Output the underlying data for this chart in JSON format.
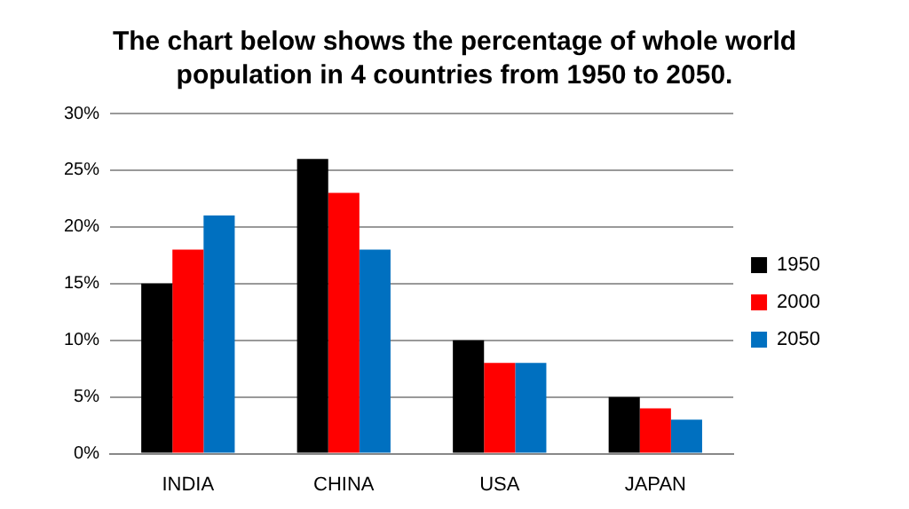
{
  "chart_data": {
    "type": "bar",
    "title": "The chart below shows the percentage of whole world population in 4 countries from 1950 to 2050.",
    "categories": [
      "INDIA",
      "CHINA",
      "USA",
      "JAPAN"
    ],
    "series": [
      {
        "name": "1950",
        "color": "#000000",
        "values": [
          15,
          26,
          10,
          5
        ]
      },
      {
        "name": "2000",
        "color": "#ff0000",
        "values": [
          18,
          23,
          8,
          4
        ]
      },
      {
        "name": "2050",
        "color": "#0070c0",
        "values": [
          21,
          18,
          8,
          3
        ]
      }
    ],
    "ylim": [
      0,
      30
    ],
    "yticks": [
      {
        "value": 0,
        "label": "0%"
      },
      {
        "value": 5,
        "label": "5%"
      },
      {
        "value": 10,
        "label": "10%"
      },
      {
        "value": 15,
        "label": "15%"
      },
      {
        "value": 20,
        "label": "20%"
      },
      {
        "value": 25,
        "label": "25%"
      },
      {
        "value": 30,
        "label": "30%"
      }
    ],
    "grid": "y",
    "legend": "right"
  }
}
